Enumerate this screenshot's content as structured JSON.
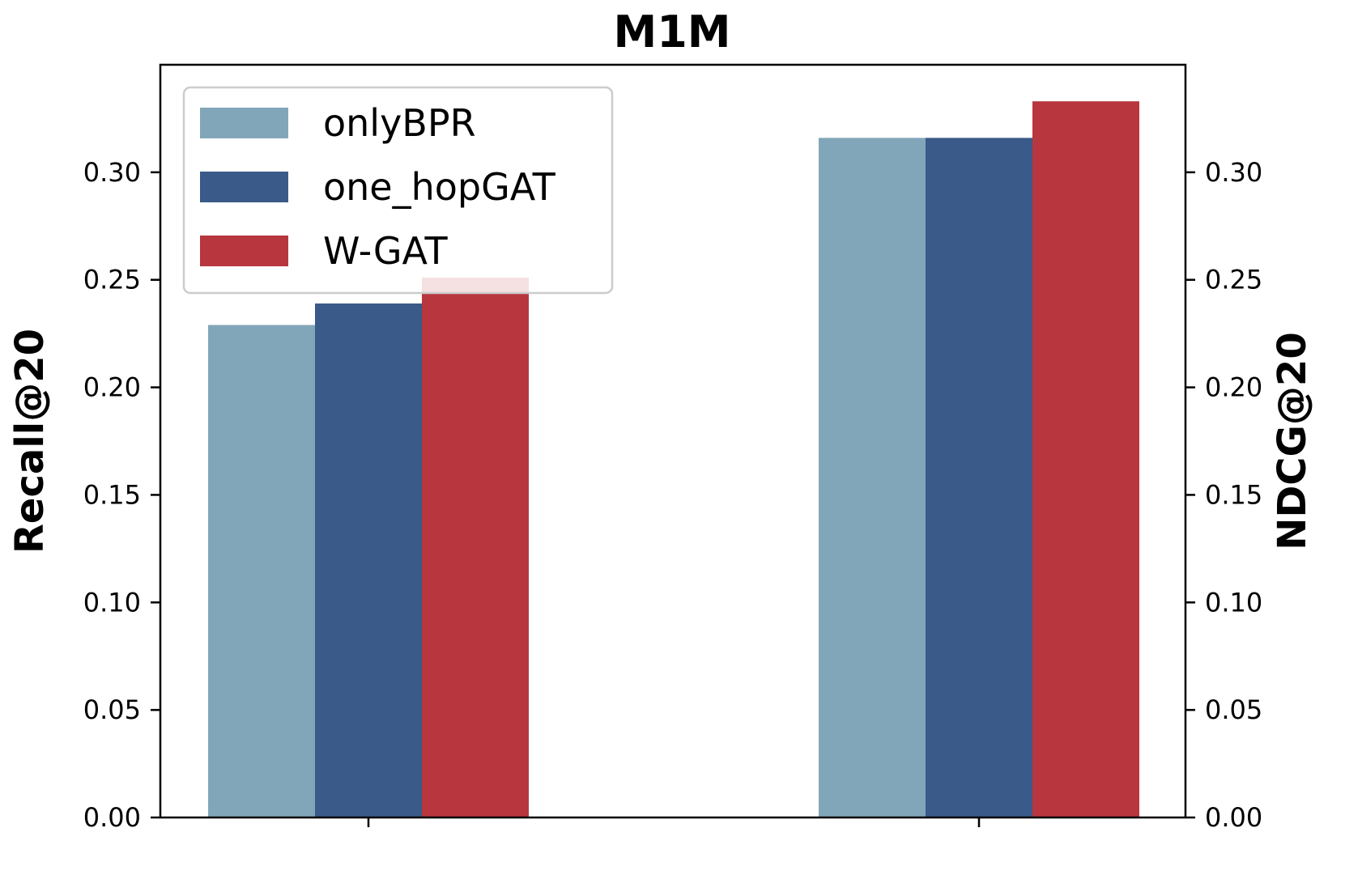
{
  "chart_data": {
    "type": "bar",
    "title": "M1M",
    "ylabel_left": "Recall@20",
    "ylabel_right": "NDCG@20",
    "ylim": [
      0,
      0.35
    ],
    "yticks": [
      "0.00",
      "0.05",
      "0.10",
      "0.15",
      "0.20",
      "0.25",
      "0.30"
    ],
    "grid": false,
    "legend_position": "top-left",
    "groups": [
      {
        "axis": "left",
        "label": ""
      },
      {
        "axis": "right",
        "label": ""
      }
    ],
    "series": [
      {
        "name": "onlyBPR",
        "color": "#82a6b9",
        "values": [
          0.229,
          0.316
        ]
      },
      {
        "name": "one_hopGAT",
        "color": "#3a5a89",
        "values": [
          0.239,
          0.316
        ]
      },
      {
        "name": "W-GAT",
        "color": "#b8363e",
        "values": [
          0.251,
          0.333
        ]
      }
    ]
  }
}
